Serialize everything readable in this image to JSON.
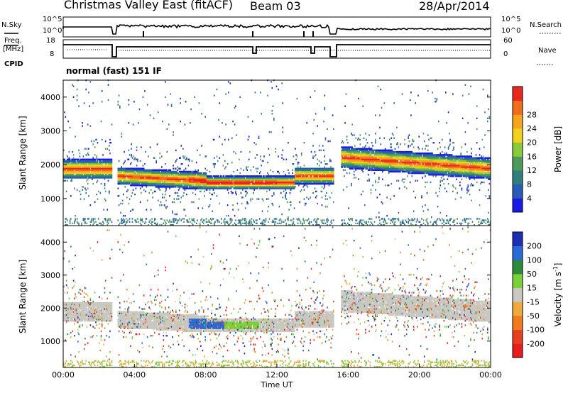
{
  "header": {
    "title": "Christmas Valley East (fitACF)",
    "beam": "Beam 03",
    "date": "28/Apr/2014"
  },
  "status_panels": {
    "nsky_label": "N.Sky",
    "nsearch_label": "N.Search",
    "freq_label_line1": "Freq.",
    "freq_label_line2": "[MHz]",
    "nave_label": "Nave",
    "cpid_label": "CPID",
    "cpid_value": "normal (fast) 151 IF",
    "nsky_ticks": [
      "10^5",
      "10^0"
    ],
    "nsearch_ticks": [
      "10^5",
      "10^0"
    ],
    "freq_ticks": [
      "18",
      "8"
    ],
    "nave_ticks": [
      "60",
      "0"
    ]
  },
  "chart_data": [
    {
      "type": "heatmap",
      "quantity": "Power",
      "ylabel": "Slant Range [km]",
      "ylim": [
        200,
        4500
      ],
      "yticks": [
        1000,
        2000,
        3000,
        4000
      ],
      "xlim": [
        0,
        24
      ],
      "colorbar_label": "Power [dB]",
      "colorbar_ticks": [
        "4",
        "8",
        "12",
        "16",
        "20",
        "24",
        "28"
      ],
      "colorbar_colors": [
        "#1a1ae6",
        "#2a5ab8",
        "#2f7e7e",
        "#4f9a5a",
        "#8acb3a",
        "#f2d01c",
        "#f5a51c",
        "#f06d1c",
        "#e8281c"
      ]
    },
    {
      "type": "heatmap",
      "quantity": "Velocity",
      "ylabel": "Slant Range [km]",
      "ylim": [
        200,
        4500
      ],
      "yticks": [
        1000,
        2000,
        3000,
        4000
      ],
      "xlim": [
        0,
        24
      ],
      "xlabel": "Time UT",
      "xticks": [
        "00:00",
        "04:00",
        "08:00",
        "12:00",
        "16:00",
        "20:00",
        "00:00"
      ],
      "colorbar_label": "Velocity [m s",
      "colorbar_label_exp": "-1",
      "colorbar_label_end": "]",
      "colorbar_ticks": [
        "200",
        "100",
        "50",
        "15",
        "-15",
        "-50",
        "-100",
        "-200"
      ],
      "colorbar_colors": [
        "#1c2fb5",
        "#2a6ad8",
        "#2c8a3a",
        "#7ad03a",
        "#c8c8c0",
        "#f0a93a",
        "#f07a1c",
        "#e8401c",
        "#e81c1c"
      ]
    }
  ]
}
